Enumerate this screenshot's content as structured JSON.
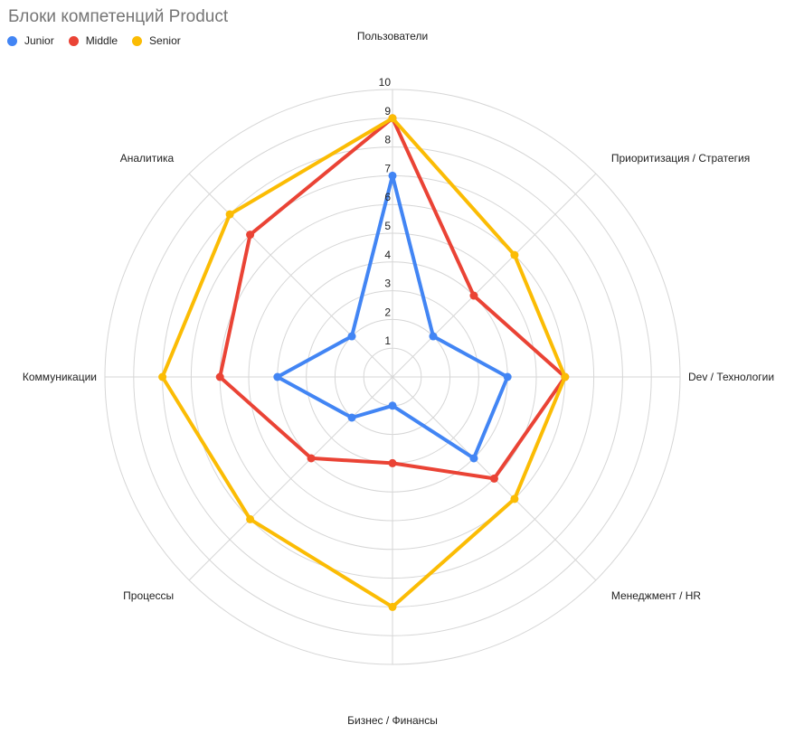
{
  "chart_data": {
    "type": "radar",
    "title": "Блоки компетенций Product",
    "axes": [
      "Пользователи",
      "Приоритизация / Стратегия",
      "Dev / Технологии",
      "Менеджмент / HR",
      "Бизнес / Финансы",
      "Процессы",
      "Коммуникации",
      "Аналитика"
    ],
    "rlim": [
      0,
      10
    ],
    "ticks": [
      "1",
      "2",
      "3",
      "4",
      "5",
      "6",
      "7",
      "8",
      "9",
      "10"
    ],
    "grid": true,
    "legend": "top-left",
    "series": [
      {
        "name": "Junior",
        "color": "#4285f4",
        "values": [
          7,
          2,
          4,
          4,
          1,
          2,
          4,
          2
        ]
      },
      {
        "name": "Middle",
        "color": "#ea4335",
        "values": [
          9,
          4,
          6,
          5,
          3,
          4,
          6,
          7
        ]
      },
      {
        "name": "Senior",
        "color": "#fbbc04",
        "values": [
          9,
          6,
          6,
          6,
          8,
          7,
          8,
          8
        ]
      }
    ]
  }
}
